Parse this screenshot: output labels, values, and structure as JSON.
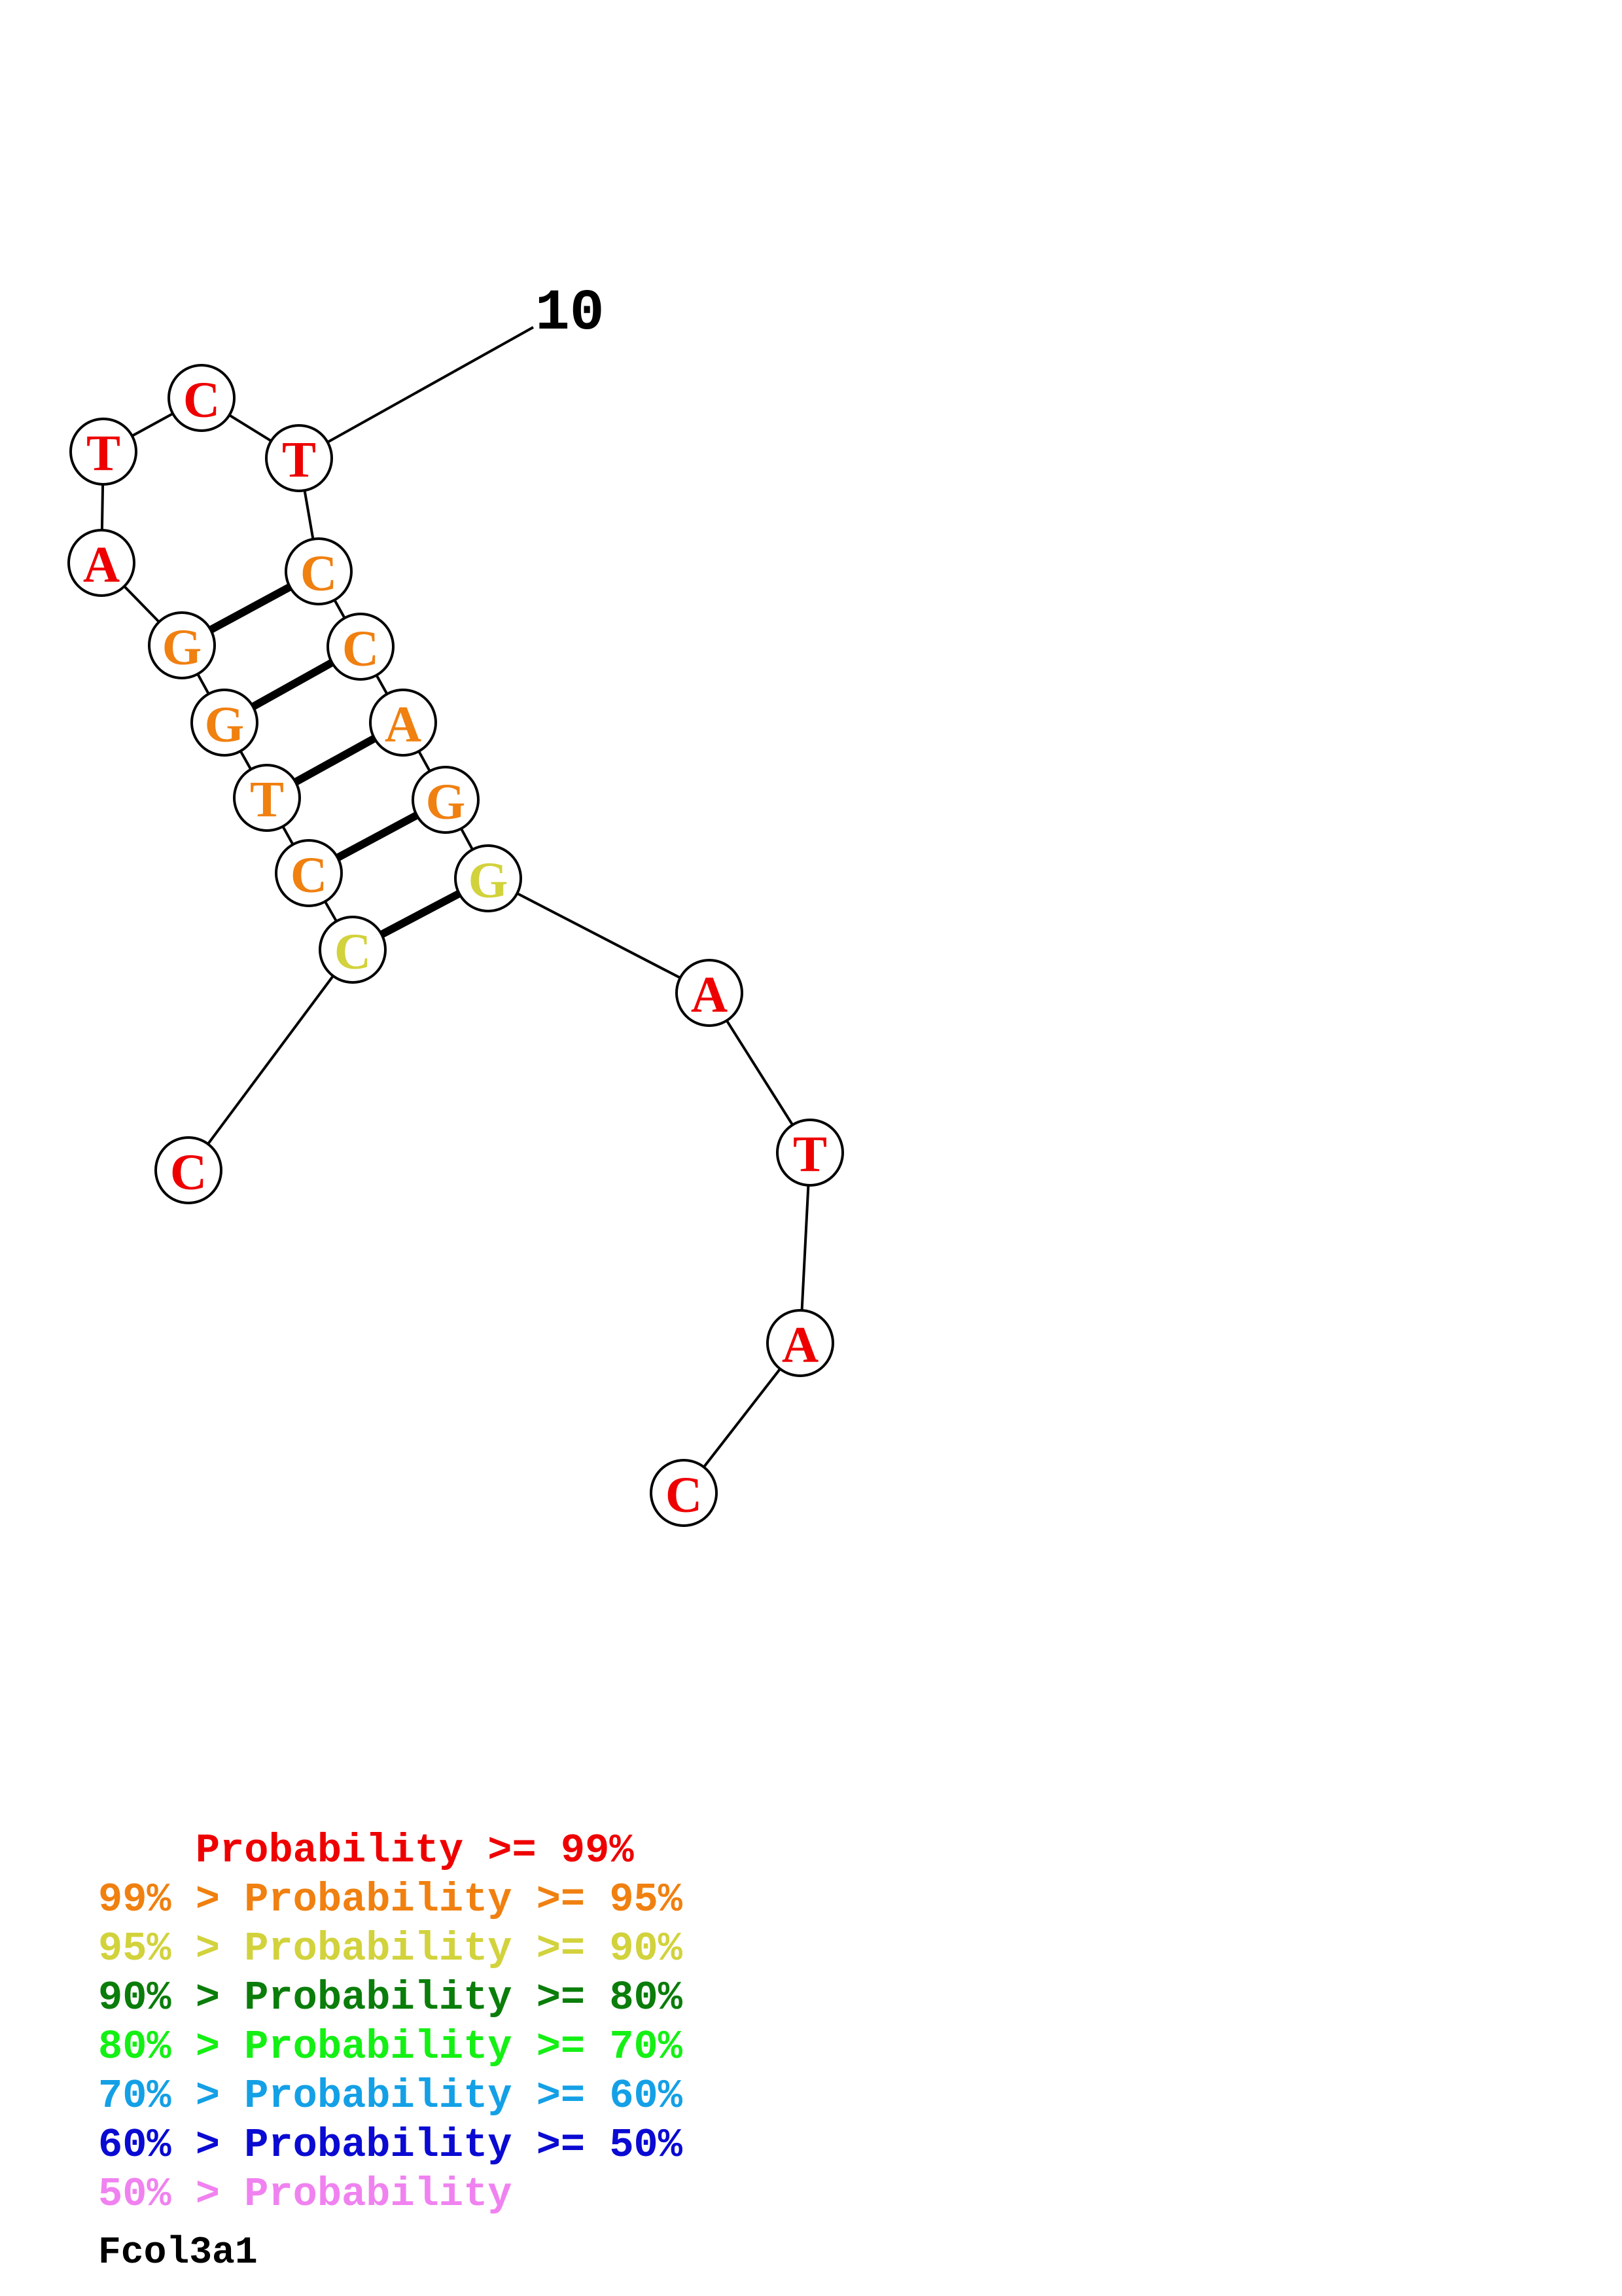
{
  "structure": {
    "index_label": "10",
    "bases": [
      {
        "n": 1,
        "letter": "C",
        "prob_class": "ge99"
      },
      {
        "n": 2,
        "letter": "C",
        "prob_class": "90to95"
      },
      {
        "n": 3,
        "letter": "C",
        "prob_class": "95to99"
      },
      {
        "n": 4,
        "letter": "T",
        "prob_class": "95to99"
      },
      {
        "n": 5,
        "letter": "G",
        "prob_class": "95to99"
      },
      {
        "n": 6,
        "letter": "G",
        "prob_class": "95to99"
      },
      {
        "n": 7,
        "letter": "A",
        "prob_class": "ge99"
      },
      {
        "n": 8,
        "letter": "T",
        "prob_class": "ge99"
      },
      {
        "n": 9,
        "letter": "C",
        "prob_class": "ge99"
      },
      {
        "n": 10,
        "letter": "T",
        "prob_class": "ge99"
      },
      {
        "n": 11,
        "letter": "C",
        "prob_class": "95to99"
      },
      {
        "n": 12,
        "letter": "C",
        "prob_class": "95to99"
      },
      {
        "n": 13,
        "letter": "A",
        "prob_class": "95to99"
      },
      {
        "n": 14,
        "letter": "G",
        "prob_class": "95to99"
      },
      {
        "n": 15,
        "letter": "G",
        "prob_class": "90to95"
      },
      {
        "n": 16,
        "letter": "A",
        "prob_class": "ge99"
      },
      {
        "n": 17,
        "letter": "T",
        "prob_class": "ge99"
      },
      {
        "n": 18,
        "letter": "A",
        "prob_class": "ge99"
      },
      {
        "n": 19,
        "letter": "C",
        "prob_class": "ge99"
      }
    ],
    "pairs": [
      [
        2,
        15
      ],
      [
        3,
        14
      ],
      [
        4,
        13
      ],
      [
        5,
        12
      ],
      [
        6,
        11
      ]
    ]
  },
  "colors": {
    "ge99": "#ee0000",
    "95to99": "#f08010",
    "90to95": "#d2d23c",
    "80to90": "#0a7d0a",
    "70to80": "#14f014",
    "60to70": "#14a0e6",
    "50to60": "#0a0ad2",
    "lt50": "#f082f0"
  },
  "legend": [
    {
      "text": "    Probability >= 99%",
      "color_key": "ge99"
    },
    {
      "text": "99% > Probability >= 95%",
      "color_key": "95to99"
    },
    {
      "text": "95% > Probability >= 90%",
      "color_key": "90to95"
    },
    {
      "text": "90% > Probability >= 80%",
      "color_key": "80to90"
    },
    {
      "text": "80% > Probability >= 70%",
      "color_key": "70to80"
    },
    {
      "text": "70% > Probability >= 60%",
      "color_key": "60to70"
    },
    {
      "text": "60% > Probability >= 50%",
      "color_key": "50to60"
    },
    {
      "text": "50% > Probability",
      "color_key": "lt50"
    }
  ],
  "sequence_name": "Fcol3a1"
}
